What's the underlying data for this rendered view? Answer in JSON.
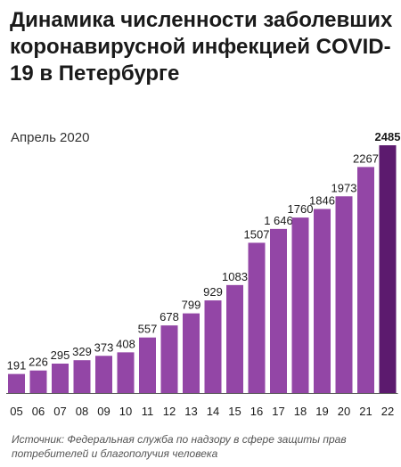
{
  "title": "Динамика численности заболевших коронавирусной инфекцией COVID-19 в Петербурге",
  "subtitle": "Апрель 2020",
  "source": "Источник: Федеральная служба по надзору в сфере защиты прав потребителей и благополучия человека",
  "colors": {
    "bar": "#9346a6",
    "bar_last": "#5c1a6e",
    "baseline": "#5a5a5a"
  },
  "chart_data": {
    "type": "bar",
    "title": "Динамика численности заболевших коронавирусной инфекцией COVID-19 в Петербурге",
    "subtitle": "Апрель 2020",
    "categories": [
      "05",
      "06",
      "07",
      "08",
      "09",
      "10",
      "11",
      "12",
      "13",
      "14",
      "15",
      "16",
      "17",
      "18",
      "19",
      "20",
      "21",
      "22"
    ],
    "values": [
      191,
      226,
      295,
      329,
      373,
      408,
      557,
      678,
      799,
      929,
      1083,
      1507,
      1646,
      1760,
      1846,
      1973,
      2267,
      2485
    ],
    "value_labels": [
      "191",
      "226",
      "295",
      "329",
      "373",
      "408",
      "557",
      "678",
      "799",
      "929",
      "1083",
      "1507",
      "1 646",
      "1760",
      "1846",
      "1973",
      "2267",
      "2485"
    ],
    "ylim": [
      0,
      2485
    ],
    "grid": false,
    "legend": "none"
  }
}
